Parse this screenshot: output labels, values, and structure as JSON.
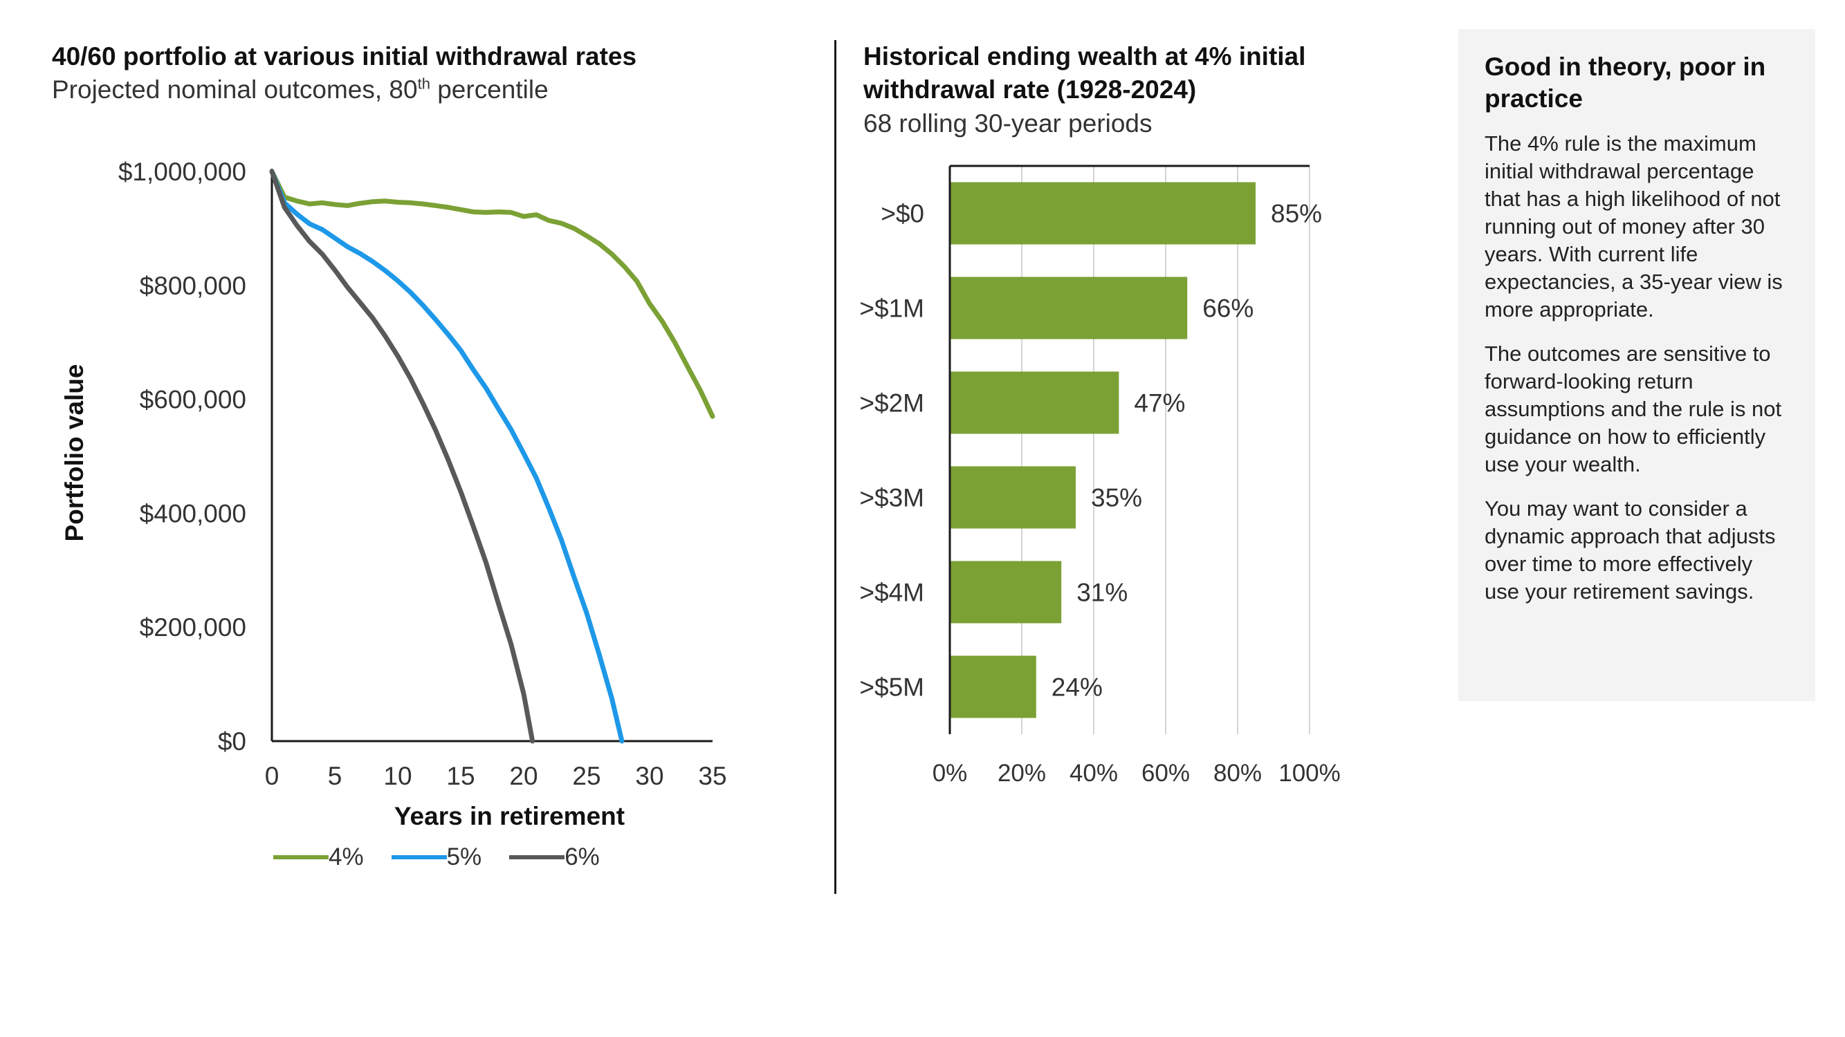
{
  "left_chart": {
    "title": "40/60 portfolio at various initial withdrawal rates",
    "subtitle_prefix": "Projected nominal outcomes, 80",
    "subtitle_sup": "th",
    "subtitle_suffix": " percentile"
  },
  "right_chart": {
    "title": "Historical ending wealth at 4% initial withdrawal rate (1928-2024)",
    "subtitle": "68 rolling 30-year periods"
  },
  "sidebar": {
    "heading": "Good in theory, poor in practice",
    "paragraphs": [
      "The 4% rule is the maximum initial withdrawal percentage that has a high likelihood of not running out of money after 30 years. With current life expectancies, a 35-year view is more appropriate.",
      "The outcomes are sensitive to forward-looking return assumptions and the rule is not guidance on how to efficiently use your wealth.",
      "You may want to consider a dynamic approach that adjusts over time to more effectively use your retirement savings."
    ]
  },
  "chart_data": [
    {
      "type": "line",
      "xlabel": "Years in retirement",
      "ylabel": "Portfolio value",
      "xlim": [
        0,
        35
      ],
      "ylim": [
        0,
        1000000
      ],
      "x_ticks": [
        0,
        5,
        10,
        15,
        20,
        25,
        30,
        35
      ],
      "x_tick_labels": [
        "0",
        "5",
        "10",
        "15",
        "20",
        "25",
        "30",
        "35"
      ],
      "y_ticks": [
        0,
        200000,
        400000,
        600000,
        800000,
        1000000
      ],
      "y_tick_labels": [
        "$0",
        "$200,000",
        "$400,000",
        "$600,000",
        "$800,000",
        "$1,000,000"
      ],
      "legend_position": "bottom",
      "series": [
        {
          "name": "4%",
          "color": "#7ba135",
          "points": [
            [
              0,
              1000000
            ],
            [
              1,
              955000
            ],
            [
              2,
              948000
            ],
            [
              3,
              943000
            ],
            [
              4,
              945000
            ],
            [
              5,
              942000
            ],
            [
              6,
              940000
            ],
            [
              7,
              944000
            ],
            [
              8,
              947000
            ],
            [
              9,
              948000
            ],
            [
              10,
              946000
            ],
            [
              11,
              945000
            ],
            [
              12,
              943000
            ],
            [
              13,
              940000
            ],
            [
              14,
              937000
            ],
            [
              15,
              933000
            ],
            [
              16,
              929000
            ],
            [
              17,
              928000
            ],
            [
              18,
              929000
            ],
            [
              19,
              928000
            ],
            [
              20,
              921000
            ],
            [
              21,
              924000
            ],
            [
              22,
              914000
            ],
            [
              23,
              909000
            ],
            [
              24,
              900000
            ],
            [
              25,
              887000
            ],
            [
              26,
              873000
            ],
            [
              27,
              855000
            ],
            [
              28,
              833000
            ],
            [
              29,
              807000
            ],
            [
              30,
              768000
            ],
            [
              31,
              737000
            ],
            [
              32,
              700000
            ],
            [
              33,
              658000
            ],
            [
              34,
              617000
            ],
            [
              35,
              570000
            ]
          ]
        },
        {
          "name": "5%",
          "color": "#1e98e8",
          "points": [
            [
              0,
              1000000
            ],
            [
              1,
              945000
            ],
            [
              2,
              925000
            ],
            [
              3,
              908000
            ],
            [
              4,
              898000
            ],
            [
              5,
              883000
            ],
            [
              6,
              868000
            ],
            [
              7,
              856000
            ],
            [
              8,
              842000
            ],
            [
              9,
              826000
            ],
            [
              10,
              808000
            ],
            [
              11,
              788000
            ],
            [
              12,
              765000
            ],
            [
              13,
              740000
            ],
            [
              14,
              714000
            ],
            [
              15,
              686000
            ],
            [
              16,
              652000
            ],
            [
              17,
              620000
            ],
            [
              18,
              583000
            ],
            [
              19,
              547000
            ],
            [
              20,
              505000
            ],
            [
              21,
              462000
            ],
            [
              22,
              409000
            ],
            [
              23,
              353000
            ],
            [
              24,
              288000
            ],
            [
              25,
              225000
            ],
            [
              26,
              152000
            ],
            [
              27,
              75000
            ],
            [
              27.8,
              0
            ]
          ]
        },
        {
          "name": "6%",
          "color": "#58595b",
          "points": [
            [
              0,
              1000000
            ],
            [
              1,
              937000
            ],
            [
              2,
              905000
            ],
            [
              3,
              877000
            ],
            [
              4,
              855000
            ],
            [
              5,
              827000
            ],
            [
              6,
              797000
            ],
            [
              7,
              770000
            ],
            [
              8,
              743000
            ],
            [
              9,
              711000
            ],
            [
              10,
              676000
            ],
            [
              11,
              637000
            ],
            [
              12,
              593000
            ],
            [
              13,
              546000
            ],
            [
              14,
              494000
            ],
            [
              15,
              438000
            ],
            [
              16,
              377000
            ],
            [
              17,
              314000
            ],
            [
              18,
              241000
            ],
            [
              19,
              170000
            ],
            [
              20,
              83000
            ],
            [
              20.7,
              0
            ]
          ]
        }
      ]
    },
    {
      "type": "bar",
      "orientation": "horizontal",
      "categories": [
        ">$0",
        ">$1M",
        ">$2M",
        ">$3M",
        ">$4M",
        ">$5M"
      ],
      "values": [
        85,
        66,
        47,
        35,
        31,
        24
      ],
      "value_labels": [
        "85%",
        "66%",
        "47%",
        "35%",
        "31%",
        "24%"
      ],
      "xlim": [
        0,
        100
      ],
      "x_ticks": [
        0,
        20,
        40,
        60,
        80,
        100
      ],
      "x_tick_labels": [
        "0%",
        "20%",
        "40%",
        "60%",
        "80%",
        "100%"
      ],
      "color": "#7ba135",
      "grid": true
    }
  ]
}
